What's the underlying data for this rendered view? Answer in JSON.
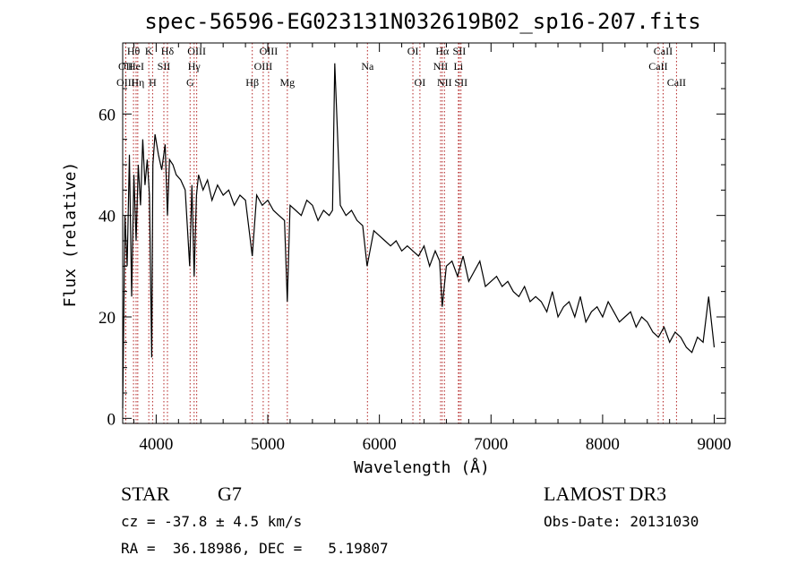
{
  "chart_data": {
    "type": "line",
    "title": "spec-56596-EG023131N032619B02_sp16-207.fits",
    "xlabel": "Wavelength (Å)",
    "ylabel": "Flux (relative)",
    "xlim": [
      3700,
      9100
    ],
    "ylim": [
      -1,
      74
    ],
    "x_ticks": [
      4000,
      5000,
      6000,
      7000,
      8000,
      9000
    ],
    "y_ticks": [
      0,
      20,
      40,
      60
    ],
    "series": [
      {
        "name": "flux",
        "x": [
          3700,
          3720,
          3740,
          3760,
          3780,
          3800,
          3820,
          3840,
          3860,
          3880,
          3900,
          3920,
          3940,
          3960,
          3970,
          3990,
          4020,
          4050,
          4080,
          4101,
          4120,
          4150,
          4180,
          4220,
          4260,
          4300,
          4320,
          4340,
          4361,
          4380,
          4420,
          4460,
          4500,
          4550,
          4600,
          4650,
          4700,
          4750,
          4800,
          4861,
          4900,
          4950,
          5000,
          5050,
          5100,
          5150,
          5175,
          5200,
          5250,
          5300,
          5350,
          5400,
          5450,
          5500,
          5550,
          5580,
          5600,
          5650,
          5700,
          5750,
          5800,
          5850,
          5890,
          5950,
          6000,
          6050,
          6100,
          6150,
          6200,
          6250,
          6300,
          6350,
          6400,
          6450,
          6500,
          6540,
          6563,
          6600,
          6650,
          6700,
          6750,
          6800,
          6850,
          6900,
          6950,
          7000,
          7050,
          7100,
          7150,
          7200,
          7250,
          7300,
          7350,
          7400,
          7450,
          7500,
          7550,
          7600,
          7650,
          7700,
          7750,
          7800,
          7850,
          7900,
          7950,
          8000,
          8050,
          8100,
          8150,
          8200,
          8250,
          8300,
          8350,
          8400,
          8450,
          8500,
          8550,
          8600,
          8650,
          8700,
          8750,
          8800,
          8850,
          8900,
          8950,
          9000
        ],
        "y": [
          2,
          40,
          30,
          52,
          24,
          48,
          35,
          50,
          42,
          55,
          46,
          51,
          44,
          12,
          50,
          56,
          52,
          49,
          54,
          40,
          51,
          50,
          48,
          47,
          45,
          30,
          46,
          28,
          44,
          48,
          45,
          47,
          43,
          46,
          44,
          45,
          42,
          44,
          43,
          32,
          44,
          42,
          43,
          41,
          40,
          39,
          23,
          42,
          41,
          40,
          43,
          42,
          39,
          41,
          40,
          41,
          70,
          42,
          40,
          41,
          39,
          38,
          30,
          37,
          36,
          35,
          34,
          35,
          33,
          34,
          33,
          32,
          34,
          30,
          33,
          31,
          22,
          30,
          31,
          28,
          32,
          27,
          29,
          31,
          26,
          27,
          28,
          26,
          27,
          25,
          24,
          26,
          23,
          24,
          23,
          21,
          25,
          20,
          22,
          23,
          20,
          24,
          19,
          21,
          22,
          20,
          23,
          21,
          19,
          20,
          21,
          18,
          20,
          19,
          17,
          16,
          18,
          15,
          17,
          16,
          14,
          13,
          16,
          15,
          24,
          14
        ]
      }
    ],
    "line_markers": [
      {
        "label": "Hθ",
        "x": 3797,
        "row": 1
      },
      {
        "label": "OII",
        "x": 3727,
        "row": 2
      },
      {
        "label": "OIII",
        "x": 3727,
        "row": 3
      },
      {
        "label": "HeI",
        "x": 3820,
        "row": 2
      },
      {
        "label": "Hη",
        "x": 3835,
        "row": 3
      },
      {
        "label": "K",
        "x": 3934,
        "row": 1
      },
      {
        "label": "SII",
        "x": 4069,
        "row": 2
      },
      {
        "label": "H",
        "x": 3968,
        "row": 3
      },
      {
        "label": "Hδ",
        "x": 4101,
        "row": 1
      },
      {
        "label": "OIII",
        "x": 4363,
        "row": 1
      },
      {
        "label": "Hγ",
        "x": 4340,
        "row": 2
      },
      {
        "label": "G",
        "x": 4304,
        "row": 3
      },
      {
        "label": "OIII",
        "x": 5007,
        "row": 1
      },
      {
        "label": "OIII",
        "x": 4959,
        "row": 2
      },
      {
        "label": "Hβ",
        "x": 4861,
        "row": 3
      },
      {
        "label": "Mg",
        "x": 5175,
        "row": 3
      },
      {
        "label": "Na",
        "x": 5893,
        "row": 2
      },
      {
        "label": "OI",
        "x": 6300,
        "row": 1
      },
      {
        "label": "OI",
        "x": 6363,
        "row": 3
      },
      {
        "label": "Hα",
        "x": 6563,
        "row": 1
      },
      {
        "label": "SII",
        "x": 6716,
        "row": 1
      },
      {
        "label": "NII",
        "x": 6548,
        "row": 2
      },
      {
        "label": "Li",
        "x": 6708,
        "row": 2
      },
      {
        "label": "NII",
        "x": 6583,
        "row": 3
      },
      {
        "label": "SII",
        "x": 6731,
        "row": 3
      },
      {
        "label": "CaII",
        "x": 8542,
        "row": 1
      },
      {
        "label": "CaII",
        "x": 8498,
        "row": 2
      },
      {
        "label": "CaII",
        "x": 8662,
        "row": 3
      }
    ]
  },
  "info": {
    "class_label": "STAR",
    "subclass": "G7",
    "survey": "LAMOST DR3",
    "cz": "cz = -37.8 ± 4.5 km/s",
    "obs_date": "Obs-Date: 20131030",
    "coords": "RA =  36.18986, DEC =   5.19807"
  }
}
